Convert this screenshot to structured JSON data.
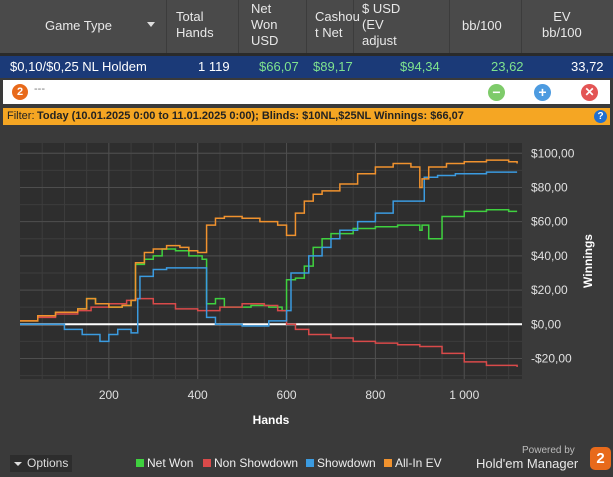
{
  "table": {
    "headers": {
      "game_type": "Game Type",
      "total_hands": "Total\nHands",
      "net_won": "Net\nWon\nUSD",
      "cashout_net": "Cashou\nt Net",
      "usd_ev": "$ USD\n(EV\nadjust",
      "bb100": "bb/100",
      "ev_bb100": "EV\nbb/100"
    },
    "row": {
      "game": "$0,10/$0,25 NL Holdem",
      "hands": "1 119",
      "net_won": "$66,07",
      "cashout": "$89,17",
      "usd_ev": "$94,34",
      "bb100": "23,62",
      "ev_bb100": "33,72"
    }
  },
  "toolbar": {
    "logo": "2",
    "title": "---",
    "min": "−",
    "add": "+",
    "close": "✕"
  },
  "filter": {
    "label": "Filter:",
    "text": "Today (10.01.2025 0:00 to 11.01.2025 0:00); Blinds: $10NL,$25NL  Winnings: $66,07",
    "help": "?"
  },
  "chart_data": {
    "type": "line",
    "xlabel": "Hands",
    "ylabel": "Winnings",
    "xlim": [
      0,
      1130
    ],
    "ylim": [
      -32,
      106
    ],
    "xticks": [
      200,
      400,
      600,
      800,
      1000
    ],
    "xtick_labels": [
      "200",
      "400",
      "600",
      "800",
      "1 000"
    ],
    "yticks": [
      100,
      80,
      60,
      40,
      20,
      0,
      -20
    ],
    "ytick_labels": [
      "$100,00",
      "$80,00",
      "$60,00",
      "$40,00",
      "$20,00",
      "$0,00",
      "-$20,00"
    ],
    "grid": true,
    "legend_position": "bottom",
    "series": [
      {
        "name": "Net Won",
        "color": "#3fd13f",
        "x": [
          0,
          40,
          80,
          130,
          150,
          170,
          200,
          230,
          250,
          260,
          280,
          300,
          320,
          350,
          380,
          410,
          420,
          440,
          460,
          520,
          560,
          590,
          600,
          620,
          640,
          660,
          680,
          700,
          750,
          800,
          850,
          900,
          905,
          920,
          950,
          1000,
          1050,
          1100,
          1119
        ],
        "y": [
          2,
          5,
          7,
          9,
          15,
          12,
          10,
          11,
          14,
          35,
          38,
          40,
          44,
          43,
          40,
          38,
          12,
          15,
          10,
          11,
          10,
          8,
          26,
          27,
          34,
          45,
          50,
          53,
          56,
          57,
          58,
          55,
          58,
          50,
          63,
          66,
          67,
          66,
          66
        ]
      },
      {
        "name": "Non Showdown",
        "color": "#d94a4a",
        "x": [
          0,
          40,
          80,
          130,
          160,
          200,
          240,
          260,
          300,
          350,
          400,
          450,
          500,
          550,
          580,
          600,
          620,
          650,
          700,
          750,
          800,
          850,
          900,
          950,
          1000,
          1050,
          1100,
          1119
        ],
        "y": [
          2,
          4,
          6,
          8,
          10,
          12,
          14,
          15,
          12,
          9,
          8,
          10,
          12,
          11,
          8,
          0,
          -3,
          -6,
          -8,
          -10,
          -11,
          -12,
          -13,
          -17,
          -22,
          -24,
          -24,
          -25
        ]
      },
      {
        "name": "Showdown",
        "color": "#3b9be0",
        "x": [
          0,
          60,
          90,
          100,
          140,
          180,
          200,
          220,
          250,
          265,
          270,
          300,
          330,
          360,
          380,
          400,
          415,
          420,
          440,
          500,
          560,
          600,
          610,
          650,
          680,
          700,
          720,
          760,
          800,
          840,
          870,
          900,
          910,
          940,
          980,
          1050,
          1100,
          1119
        ],
        "y": [
          0,
          0,
          0,
          -3,
          -6,
          -10,
          -6,
          -3,
          -5,
          15,
          28,
          32,
          33,
          33,
          33,
          33,
          33,
          4,
          0,
          -1,
          2,
          8,
          30,
          40,
          45,
          50,
          55,
          60,
          65,
          72,
          72,
          72,
          86,
          87,
          88,
          89,
          89,
          89
        ]
      },
      {
        "name": "All-In EV",
        "color": "#f0922e",
        "x": [
          0,
          40,
          80,
          130,
          150,
          170,
          200,
          230,
          250,
          260,
          280,
          300,
          330,
          360,
          380,
          400,
          420,
          440,
          460,
          500,
          540,
          580,
          600,
          620,
          640,
          660,
          680,
          720,
          760,
          800,
          840,
          880,
          900,
          905,
          920,
          960,
          1000,
          1050,
          1100,
          1119
        ],
        "y": [
          2,
          5,
          7,
          9,
          15,
          12,
          10,
          11,
          14,
          36,
          42,
          44,
          46,
          45,
          43,
          42,
          58,
          62,
          63,
          62,
          60,
          58,
          52,
          65,
          72,
          76,
          78,
          82,
          88,
          92,
          94,
          92,
          80,
          85,
          92,
          94,
          95,
          96,
          95,
          94
        ]
      }
    ]
  },
  "bottom": {
    "options_label": "Options",
    "powered_by": "Powered by",
    "brand": "Hold'em Manager",
    "brand_logo": "2"
  }
}
